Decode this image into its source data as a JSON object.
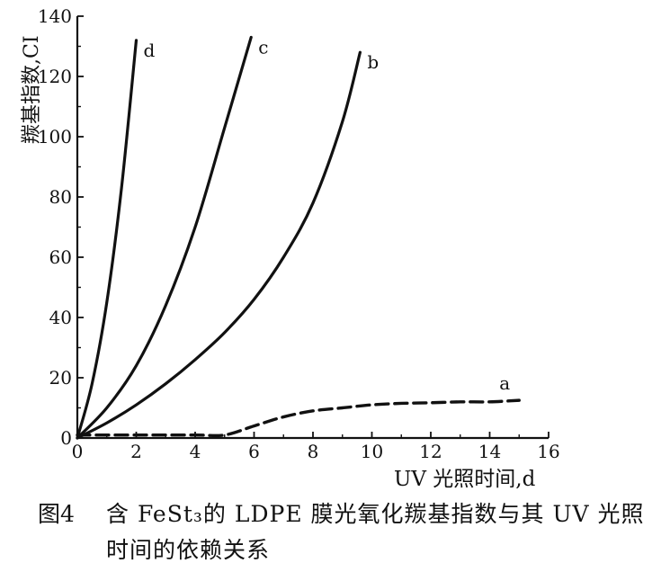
{
  "chart_data": {
    "type": "line",
    "xlabel": "UV 光照时间,d",
    "ylabel": "羰基指数,CI",
    "xlim": [
      0,
      16
    ],
    "ylim": [
      0,
      140
    ],
    "x_ticks": [
      "0",
      "2",
      "4",
      "6",
      "8",
      "10",
      "12",
      "14",
      "16"
    ],
    "y_ticks": [
      "0",
      "20",
      "40",
      "60",
      "80",
      "100",
      "120",
      "140"
    ],
    "grid": false,
    "series": [
      {
        "name": "a",
        "style": "dashed",
        "x": [
          0,
          2,
          4,
          5,
          6,
          7,
          8,
          9,
          10,
          11,
          12,
          13,
          14,
          15
        ],
        "y": [
          1,
          1,
          1,
          1,
          4,
          7,
          9,
          10,
          11,
          11.5,
          11.7,
          12,
          12,
          12.5
        ]
      },
      {
        "name": "b",
        "style": "solid",
        "x": [
          0,
          1,
          2,
          3,
          4,
          5,
          6,
          7,
          8,
          9,
          9.6
        ],
        "y": [
          0,
          5,
          11,
          18,
          26,
          35,
          46,
          60,
          78,
          105,
          128
        ]
      },
      {
        "name": "c",
        "style": "solid",
        "x": [
          0,
          1,
          2,
          3,
          4,
          5,
          5.9
        ],
        "y": [
          0,
          10,
          24,
          44,
          70,
          103,
          133
        ]
      },
      {
        "name": "d",
        "style": "solid",
        "x": [
          0,
          0.5,
          1,
          1.5,
          2
        ],
        "y": [
          0,
          18,
          45,
          83,
          132
        ]
      }
    ]
  },
  "caption": {
    "number": "图4",
    "line1": "含 FeSt₃的 LDPE 膜光氧化羰基指数与其 UV 光照",
    "line2": "时间的依赖关系"
  },
  "colors": {
    "ink": "#111111",
    "background": "#ffffff"
  }
}
